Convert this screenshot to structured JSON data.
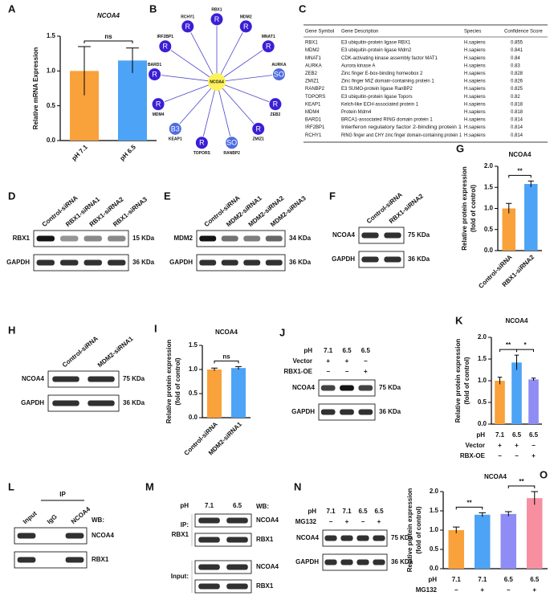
{
  "chart_data": [
    {
      "panel": "A",
      "type": "bar",
      "title": "NCOA4",
      "title_italic": true,
      "ylabel": [
        "Relative mRNA Expression"
      ],
      "categories": [
        "pH 7.1",
        "pH 6.5"
      ],
      "values": [
        1.0,
        1.15
      ],
      "errors": [
        0.35,
        0.18
      ],
      "colors": [
        "#f9a13a",
        "#4da3f5"
      ],
      "ylim": [
        0,
        1.5
      ],
      "yticks": [
        {
          "value": 0,
          "label": "0.0"
        },
        0.5,
        {
          "value": 1,
          "label": "1.0"
        },
        1.5
      ],
      "annotations": [
        {
          "text": "ns",
          "from": 0,
          "to": 1
        }
      ]
    },
    {
      "panel": "G",
      "type": "bar",
      "title": "NCOA4",
      "title_italic": false,
      "ylabel": [
        "Relative protein expression",
        "(fold of control)"
      ],
      "categories": [
        "Control-siRNA",
        "RBX1-siRNA2"
      ],
      "values": [
        1.0,
        1.58
      ],
      "errors": [
        0.12,
        0.07
      ],
      "colors": [
        "#f9a13a",
        "#4da3f5"
      ],
      "ylim": [
        0,
        2.0
      ],
      "yticks": [
        {
          "value": 0,
          "label": "0.0"
        },
        0.5,
        {
          "value": 1,
          "label": "1.0"
        },
        1.5,
        {
          "value": 2,
          "label": "2.0"
        }
      ],
      "annotations": [
        {
          "text": "**",
          "from": 0,
          "to": 1
        }
      ]
    },
    {
      "panel": "I",
      "type": "bar",
      "title": "NCOA4",
      "title_italic": false,
      "ylabel": [
        "Relative protein expression",
        "(fold of control)"
      ],
      "categories": [
        "Control-siRNA",
        "MDM2-siRNA1"
      ],
      "values": [
        1.0,
        1.03
      ],
      "errors": [
        0.03,
        0.03
      ],
      "colors": [
        "#f9a13a",
        "#4da3f5"
      ],
      "ylim": [
        0,
        1.5
      ],
      "yticks": [
        {
          "value": 0,
          "label": "0.0"
        },
        0.5,
        {
          "value": 1,
          "label": "1.0"
        },
        1.5
      ],
      "annotations": [
        {
          "text": "ns",
          "from": 0,
          "to": 1
        }
      ]
    },
    {
      "panel": "K",
      "type": "bar",
      "title": "NCOA4",
      "title_italic": false,
      "ylabel": [
        "Relative protein expression",
        "(fold of control)"
      ],
      "category_label": "pH",
      "categories": [
        "7.1",
        "6.5",
        "6.5"
      ],
      "condition_rows": [
        {
          "name": "Vector",
          "values": [
            "+",
            "+",
            "−"
          ]
        },
        {
          "name": "RBX-OE",
          "values": [
            "−",
            "−",
            "+"
          ]
        }
      ],
      "values": [
        1.0,
        1.42,
        1.03
      ],
      "errors": [
        0.08,
        0.17,
        0.03
      ],
      "colors": [
        "#f9a13a",
        "#4da3f5",
        "#8f8cf5"
      ],
      "ylim": [
        0,
        2.0
      ],
      "yticks": [
        {
          "value": 0,
          "label": "0.0"
        },
        0.5,
        {
          "value": 1,
          "label": "1.0"
        },
        1.5,
        {
          "value": 2,
          "label": "2.0"
        }
      ],
      "annotations": [
        {
          "text": "**",
          "from": 0,
          "to": 1
        },
        {
          "text": "*",
          "from": 1,
          "to": 2
        }
      ]
    },
    {
      "panel": "O",
      "type": "bar",
      "title": "NCOA4",
      "title_italic": false,
      "ylabel": [
        "Relative protein expression",
        "(fold of control)"
      ],
      "category_label": "pH",
      "categories": [
        "7.1",
        "7.1",
        "6.5",
        "6.5"
      ],
      "condition_rows": [
        {
          "name": "MG132",
          "values": [
            "−",
            "+",
            "−",
            "+"
          ]
        }
      ],
      "values": [
        1.0,
        1.4,
        1.42,
        1.83
      ],
      "errors": [
        0.08,
        0.05,
        0.06,
        0.17
      ],
      "colors": [
        "#f9a13a",
        "#4da3f5",
        "#8f8cf5",
        "#f78fa0"
      ],
      "ylim": [
        0,
        2.0
      ],
      "yticks": [
        {
          "value": 0,
          "label": "0.0"
        },
        0.5,
        {
          "value": 1,
          "label": "1.0"
        },
        1.5,
        {
          "value": 2,
          "label": "2.0"
        }
      ],
      "annotations": [
        {
          "text": "**",
          "from": 0,
          "to": 1
        },
        {
          "text": "**",
          "from": 2,
          "to": 3
        }
      ]
    }
  ],
  "network": {
    "panel": "B",
    "center": "NCOA4",
    "nodes": [
      {
        "label": "RBX1",
        "icon": "R"
      },
      {
        "label": "MDM2",
        "icon": "R"
      },
      {
        "label": "MNAT1",
        "icon": "R"
      },
      {
        "label": "AURKA",
        "icon": "SO"
      },
      {
        "label": "ZEB2",
        "icon": "R"
      },
      {
        "label": "ZMIZ1",
        "icon": "R"
      },
      {
        "label": "RANBP2",
        "icon": "SO"
      },
      {
        "label": "TOPORS",
        "icon": "R"
      },
      {
        "label": "KEAP1",
        "icon": "B3"
      },
      {
        "label": "MDM4",
        "icon": "R"
      },
      {
        "label": "BARD1",
        "icon": "R"
      },
      {
        "label": "IRF2BP1",
        "icon": "R"
      },
      {
        "label": "RCHY1",
        "icon": "R"
      }
    ]
  },
  "table": {
    "panel": "C",
    "header": [
      "Gene Symbol",
      "Gene Description",
      "Species",
      "Confidence Score"
    ],
    "highlight_rows": [
      0,
      1
    ],
    "highlight_color": "#d8302a",
    "rows": [
      [
        "RBX1",
        "E3 ubiquitin-protein ligase RBX1",
        "H.sapiens",
        "0.855"
      ],
      [
        "MDM2",
        "E3 ubiquitin-protein ligase Mdm2",
        "H.sapiens",
        "0.841"
      ],
      [
        "MNAT1",
        "CDK-activating kinase assembly factor MAT1",
        "H.sapiens",
        "0.84"
      ],
      [
        "AURKA",
        "Aurora kinase A",
        "H.sapiens",
        "0.83"
      ],
      [
        "ZEB2",
        "Zinc finger E-box-binding homeobox 2",
        "H.sapiens",
        "0.828"
      ],
      [
        "ZMIZ1",
        "Zinc finger MIZ domain-containing protein 1",
        "H.sapiens",
        "0.826"
      ],
      [
        "RANBP2",
        "E3 SUMO-protein ligase RanBP2",
        "H.sapiens",
        "0.825"
      ],
      [
        "TOPORS",
        "E3 ubiquitin-protein ligase Topors",
        "H.sapiens",
        "0.82"
      ],
      [
        "KEAP1",
        "Kelch-like ECH-associated protein 1",
        "H.sapiens",
        "0.818"
      ],
      [
        "MDM4",
        "Protein Mdm4",
        "H.sapiens",
        "0.818"
      ],
      [
        "BARD1",
        "BRCA1-associated RING domain protein 1",
        "H.sapiens",
        "0.814"
      ],
      [
        "IRF2BP1",
        "Interferon regulatory factor 2-binding protein 1",
        "H.sapiens",
        "0.814"
      ],
      [
        "RCHY1",
        "RING finger and CHY zinc finger domain-containing protein 1",
        "H.sapiens",
        "0.814"
      ]
    ]
  },
  "blots": [
    {
      "panel": "D",
      "lanes": [
        "Control-siRNA",
        "RBX1-siRNA1",
        "RBX1-siRNA2",
        "RBX1-siRNA3"
      ],
      "rows": [
        {
          "label": "RBX1",
          "size": "15 KDa"
        },
        {
          "label": "GAPDH",
          "size": "36 KDa"
        }
      ]
    },
    {
      "panel": "E",
      "lanes": [
        "Control-siRNA",
        "MDM2-siRNA1",
        "MDM2-siRNA2",
        "MDM2-siRNA3"
      ],
      "rows": [
        {
          "label": "MDM2",
          "size": "34 KDa"
        },
        {
          "label": "GAPDH",
          "size": "36 KDa"
        }
      ]
    },
    {
      "panel": "F",
      "lanes": [
        "Control-siRNA",
        "RBX1-siRNA2"
      ],
      "rows": [
        {
          "label": "NCOA4",
          "size": "75 KDa"
        },
        {
          "label": "GAPDH",
          "size": "36 KDa"
        }
      ]
    },
    {
      "panel": "H",
      "lanes": [
        "Control-siRNA",
        "MDM2-siRNA1"
      ],
      "rows": [
        {
          "label": "NCOA4",
          "size": "75 KDa"
        },
        {
          "label": "GAPDH",
          "size": "36 KDa"
        }
      ]
    },
    {
      "panel": "J",
      "header_rows": [
        {
          "name": "pH",
          "values": [
            "7.1",
            "6.5",
            "6.5"
          ]
        },
        {
          "name": "Vector",
          "values": [
            "+",
            "+",
            "−"
          ]
        },
        {
          "name": "RBX1-OE",
          "values": [
            "−",
            "−",
            "+"
          ]
        }
      ],
      "rows": [
        {
          "label": "NCOA4",
          "size": "75 KDa"
        },
        {
          "label": "GAPDH",
          "size": "36 KDa"
        }
      ]
    },
    {
      "panel": "L",
      "group_label": "IP",
      "lanes": [
        "Input",
        "IgG",
        "NCOA4"
      ],
      "wb_label": "WB:",
      "rows": [
        {
          "label": "NCOA4"
        },
        {
          "label": "RBX1"
        }
      ]
    },
    {
      "panel": "M",
      "header_rows": [
        {
          "name": "pH",
          "values": [
            "7.1",
            "6.5"
          ]
        }
      ],
      "wb_label": "WB:",
      "groups": [
        {
          "label": [
            "IP:",
            "RBX1"
          ],
          "rows": [
            {
              "label": "NCOA4"
            },
            {
              "label": "RBX1"
            }
          ]
        },
        {
          "label": [
            "Input:"
          ],
          "rows": [
            {
              "label": "NCOA4"
            },
            {
              "label": "RBX1"
            }
          ]
        }
      ]
    },
    {
      "panel": "N",
      "header_rows": [
        {
          "name": "pH",
          "values": [
            "7.1",
            "7.1",
            "6.5",
            "6.5"
          ]
        },
        {
          "name": "MG132",
          "values": [
            "−",
            "+",
            "−",
            "+"
          ]
        }
      ],
      "rows": [
        {
          "label": "NCOA4",
          "size": "75 KDa"
        },
        {
          "label": "GAPDH",
          "size": "36 KDa"
        }
      ]
    }
  ]
}
